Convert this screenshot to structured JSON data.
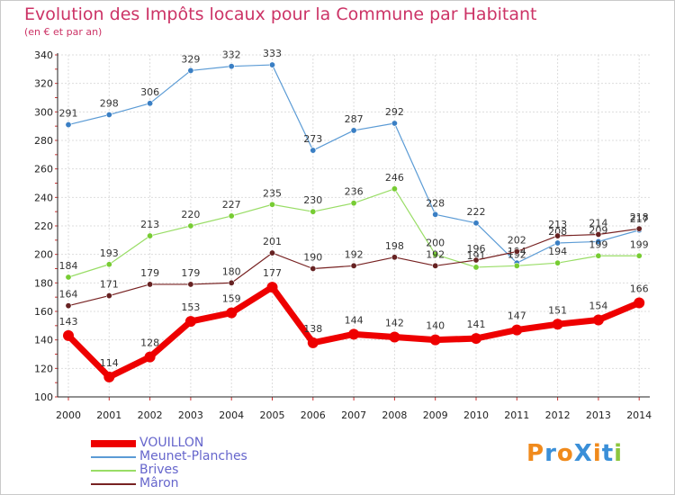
{
  "title": "Evolution des Impôts locaux pour la Commune par Habitant",
  "subtitle": "(en € et par an)",
  "logo": {
    "text": "ProXiti",
    "colors": [
      "#f08a1c",
      "#3a8fd8",
      "#f08a1c",
      "#3a8fd8",
      "#f08a1c",
      "#3a8fd8",
      "#8cc63e"
    ]
  },
  "chart_data": {
    "type": "line",
    "x": [
      "2000",
      "2001",
      "2002",
      "2003",
      "2004",
      "2005",
      "2006",
      "2007",
      "2008",
      "2009",
      "2010",
      "2011",
      "2012",
      "2013",
      "2014"
    ],
    "yticks": [
      100,
      120,
      140,
      160,
      180,
      200,
      220,
      240,
      260,
      280,
      300,
      320,
      340
    ],
    "ylim": [
      100,
      340
    ],
    "grid": true,
    "legend_position": "bottom-left",
    "series": [
      {
        "name": "Meunet-Planches",
        "color": "#5b9bd5",
        "marker": "#3a7fc4",
        "values": [
          291,
          298,
          306,
          329,
          332,
          333,
          273,
          287,
          292,
          228,
          222,
          194,
          208,
          209,
          217
        ]
      },
      {
        "name": "Brives",
        "color": "#99dd66",
        "marker": "#77cc33",
        "values": [
          184,
          193,
          213,
          220,
          227,
          235,
          230,
          236,
          246,
          200,
          191,
          192,
          194,
          199,
          199
        ]
      },
      {
        "name": "Mâron",
        "color": "#772222",
        "marker": "#662222",
        "values": [
          164,
          171,
          179,
          179,
          180,
          201,
          190,
          192,
          198,
          192,
          196,
          202,
          213,
          214,
          218
        ]
      },
      {
        "name": "VOUILLON",
        "color": "#ee0000",
        "marker": "#ee0000",
        "values": [
          143,
          114,
          128,
          153,
          159,
          177,
          138,
          144,
          142,
          140,
          141,
          147,
          151,
          154,
          166
        ]
      }
    ]
  }
}
